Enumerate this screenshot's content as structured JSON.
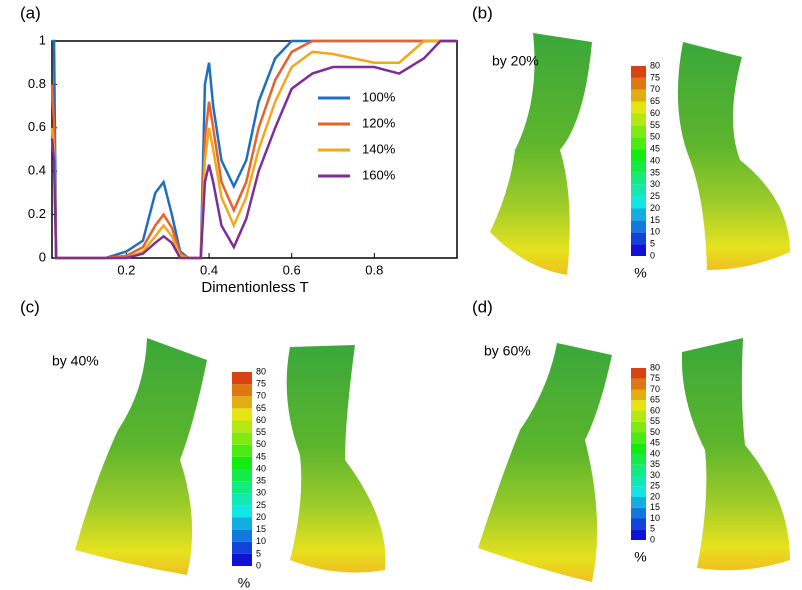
{
  "chart_data": {
    "type": "line",
    "label": "(a)",
    "x_label": "Dimentionless T",
    "x": [
      0.02,
      0.025,
      0.03,
      0.15,
      0.2,
      0.24,
      0.27,
      0.29,
      0.31,
      0.33,
      0.35,
      0.38,
      0.39,
      0.4,
      0.41,
      0.43,
      0.46,
      0.49,
      0.52,
      0.56,
      0.6,
      0.65,
      0.7,
      0.8,
      0.86,
      0.92,
      0.96,
      1
    ],
    "series": [
      {
        "name": "100%",
        "color": "#1f6fc0",
        "values": [
          1,
          1,
          0,
          0,
          0.03,
          0.08,
          0.3,
          0.35,
          0.2,
          0.03,
          0,
          0,
          0.8,
          0.9,
          0.7,
          0.45,
          0.33,
          0.45,
          0.72,
          0.92,
          1,
          1,
          1,
          1,
          1,
          1,
          1,
          1
        ]
      },
      {
        "name": "120%",
        "color": "#e8622c",
        "values": [
          0.8,
          0.6,
          0,
          0,
          0.01,
          0.05,
          0.15,
          0.2,
          0.14,
          0.02,
          0,
          0,
          0.55,
          0.72,
          0.6,
          0.35,
          0.22,
          0.35,
          0.6,
          0.82,
          0.95,
          1,
          1,
          1,
          1,
          1,
          1,
          1
        ]
      },
      {
        "name": "140%",
        "color": "#f2a81d",
        "values": [
          0.6,
          0.5,
          0,
          0,
          0,
          0.03,
          0.1,
          0.15,
          0.1,
          0.01,
          0,
          0,
          0.45,
          0.6,
          0.5,
          0.28,
          0.15,
          0.28,
          0.5,
          0.72,
          0.88,
          0.95,
          0.94,
          0.9,
          0.9,
          1,
          1,
          1
        ]
      },
      {
        "name": "160%",
        "color": "#7d2e99",
        "values": [
          0.55,
          0.45,
          0,
          0,
          0,
          0.02,
          0.07,
          0.1,
          0.07,
          0,
          0,
          0,
          0.35,
          0.43,
          0.35,
          0.15,
          0.05,
          0.18,
          0.4,
          0.6,
          0.78,
          0.85,
          0.88,
          0.88,
          0.85,
          0.92,
          1,
          1
        ]
      }
    ],
    "xlim": [
      0.02,
      1
    ],
    "ylim": [
      0,
      1
    ],
    "xticks": [
      0.2,
      0.4,
      0.6,
      0.8
    ],
    "yticks": [
      0,
      0.2,
      0.4,
      0.6,
      0.8,
      1
    ]
  },
  "colorbar": {
    "ticks": [
      0,
      5,
      10,
      15,
      20,
      25,
      30,
      35,
      40,
      45,
      50,
      55,
      60,
      65,
      70,
      75,
      80
    ],
    "unit": "%"
  },
  "panels": [
    {
      "label": "(b)",
      "caption": "by 20%"
    },
    {
      "label": "(c)",
      "caption": "by 40%"
    },
    {
      "label": "(d)",
      "caption": "by 60%"
    }
  ]
}
